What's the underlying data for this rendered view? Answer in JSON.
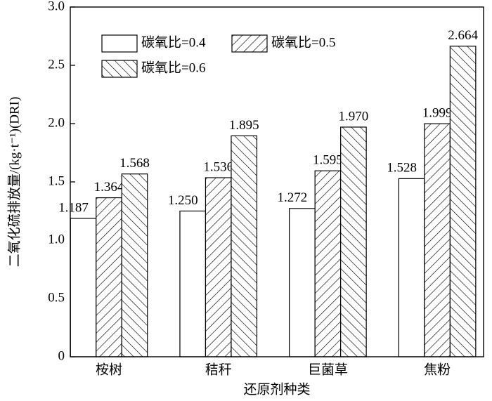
{
  "chart_data": {
    "type": "bar",
    "ylabel": "二氧化硫排放量/(kg·t⁻¹)(DRI)",
    "xlabel": "还原剂种类",
    "categories": [
      "桉树",
      "秸秆",
      "巨菌草",
      "焦粉"
    ],
    "series": [
      {
        "name": "碳氧比=0.4",
        "color": "#ffffff",
        "values": [
          1.187,
          1.25,
          1.272,
          1.528
        ],
        "value_labels": [
          "1.187",
          "1.250",
          "1.272",
          "1.528"
        ]
      },
      {
        "name": "碳氧比=0.5",
        "color": "#ffffff",
        "hatch": "/",
        "values": [
          1.364,
          1.536,
          1.595,
          1.999
        ],
        "value_labels": [
          "1.364",
          "1.536",
          "1.595",
          "1.999"
        ]
      },
      {
        "name": "碳氧比=0.6",
        "color": "#ffffff",
        "hatch": "\\",
        "values": [
          1.568,
          1.895,
          1.97,
          2.664
        ],
        "value_labels": [
          "1.568",
          "1.895",
          "1.970",
          "2.664"
        ]
      }
    ],
    "ylim": [
      0,
      3
    ],
    "yticks": [
      0,
      0.5,
      {
        "value": 1,
        "label": "1.0"
      },
      1.5,
      {
        "value": 2,
        "label": "2.0"
      },
      2.5,
      {
        "value": 3,
        "label": "3.0"
      }
    ],
    "legend": "upper left"
  }
}
